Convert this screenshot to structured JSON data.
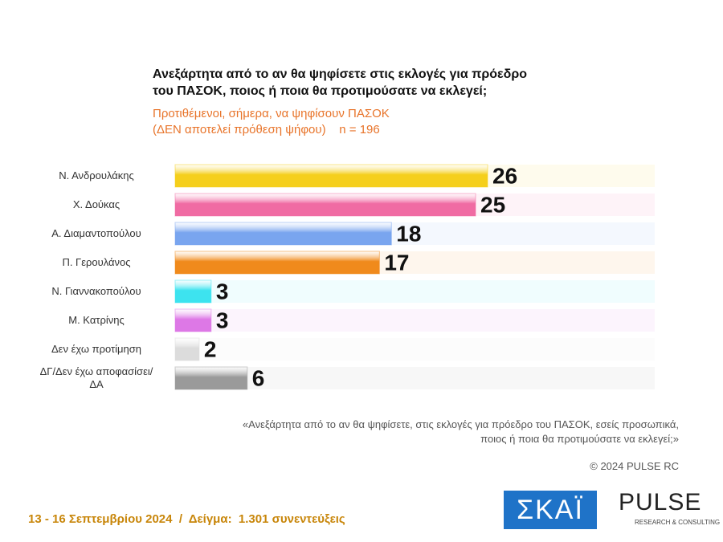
{
  "chart_data": {
    "type": "bar",
    "title": [
      "Ανεξάρτητα από το αν θα ψηφίσετε στις εκλογές για πρόεδρο",
      "του ΠΑΣΟΚ, ποιος ή ποια θα προτιμούσατε να εκλεγεί;"
    ],
    "subtitle": [
      "Προτιθέμενοι, σήμερα, να ψηφίσουν ΠΑΣΟΚ",
      "(ΔΕΝ αποτελεί πρόθεση ψήφου)    n = 196"
    ],
    "categories": [
      "Ν. Ανδρουλάκης",
      "Χ. Δούκας",
      "Α. Διαμαντοπούλου",
      "Π. Γερουλάνος",
      "Ν. Γιαννακοπούλου",
      "Μ. Κατρίνης",
      "Δεν έχω προτίμηση",
      "ΔΓ/Δεν έχω αποφασίσει/ΔΑ"
    ],
    "values": [
      26,
      25,
      18,
      17,
      3,
      3,
      2,
      6
    ],
    "colors": [
      "#f5cf1c",
      "#f06ba3",
      "#79a5ef",
      "#f08a1c",
      "#3de3ef",
      "#dd78e6",
      "#dcdcdc",
      "#9a9a9a"
    ],
    "note": [
      "«Ανεξάρτητα από το αν θα ψηφίσετε, στις εκλογές για πρόεδρο του ΠΑΣΟΚ, εσείς προσωπικά,",
      "ποιος ή ποια θα προτιμούσατε να εκλεγεί;»"
    ],
    "copyright": "© 2024 PULSE RC",
    "footer": "13 - 16 Σεπτεμβρίου 2024  /  Δείγμα:  1.301 συνεντεύξεις",
    "logos": {
      "skai": "ΣΚΑΪ",
      "pulse": "PULSE",
      "pulse_sub": "RESEARCH & CONSULTING"
    }
  }
}
